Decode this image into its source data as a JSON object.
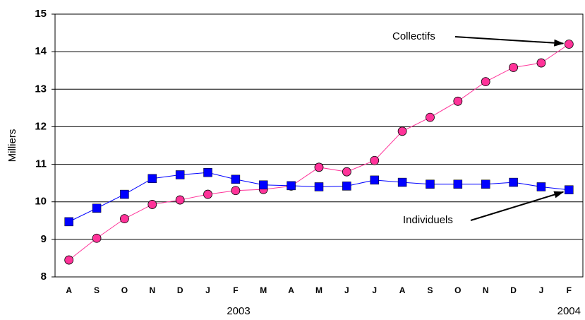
{
  "chart_data": {
    "type": "line",
    "y_label": "Milliers",
    "categories": [
      "A",
      "S",
      "O",
      "N",
      "D",
      "J",
      "F",
      "M",
      "A",
      "M",
      "J",
      "J",
      "A",
      "S",
      "O",
      "N",
      "D",
      "J",
      "F"
    ],
    "x_group_labels": [
      "2003",
      "2004"
    ],
    "series": [
      {
        "name": "Collectifs",
        "color": "#ff3399",
        "marker": "circle",
        "values": [
          8.45,
          9.03,
          9.55,
          9.93,
          10.05,
          10.2,
          10.3,
          10.33,
          10.42,
          10.92,
          10.8,
          11.1,
          11.88,
          12.25,
          12.68,
          13.2,
          13.58,
          13.7,
          14.2
        ]
      },
      {
        "name": "Individuels",
        "color": "#0000ff",
        "marker": "square",
        "values": [
          9.47,
          9.83,
          10.2,
          10.62,
          10.72,
          10.78,
          10.6,
          10.45,
          10.43,
          10.4,
          10.42,
          10.58,
          10.52,
          10.47,
          10.47,
          10.47,
          10.52,
          10.4,
          10.32
        ]
      }
    ],
    "ylim": [
      8,
      15
    ],
    "yticks": [
      8,
      9,
      10,
      11,
      12,
      13,
      14,
      15
    ],
    "grid": true
  }
}
